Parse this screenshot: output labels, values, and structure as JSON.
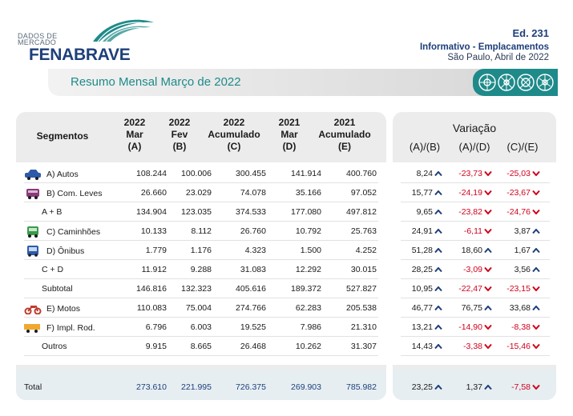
{
  "header": {
    "logo_sub_line1": "DADOS DE",
    "logo_sub_line2": "MERCADO",
    "logo_brand": "FENABRAVE",
    "edition": "Ed. 231",
    "informativo": "Informativo - Emplacamentos",
    "city_date": "São Paulo, Abril de 2022"
  },
  "banner": {
    "title": "Resumo Mensal Março de 2022"
  },
  "columns": {
    "segmentos": "Segmentos",
    "c1": [
      "2022",
      "Mar",
      "(A)"
    ],
    "c2": [
      "2022",
      "Fev",
      "(B)"
    ],
    "c3": [
      "2022",
      "Acumulado",
      "(C)"
    ],
    "c4": [
      "2021",
      "Mar",
      "(D)"
    ],
    "c5": [
      "2021",
      "Acumulado",
      "(E)"
    ]
  },
  "variacao": {
    "title": "Variação",
    "cols": [
      "(A)/(B)",
      "(A)/(D)",
      "(C)/(E)"
    ]
  },
  "colors": {
    "teal": "#1f8a8a",
    "navy": "#1e3f7a",
    "negative": "#d0021b",
    "positive_arrow": "#1e3f7a"
  },
  "rows": [
    {
      "label": "A) Autos",
      "icon": "car-icon",
      "a": "108.244",
      "b": "100.006",
      "c": "300.455",
      "d": "141.914",
      "e": "400.760",
      "v1": "8,24",
      "v1s": "up",
      "v2": "-23,73",
      "v2s": "down",
      "v3": "-25,03",
      "v3s": "down"
    },
    {
      "label": "B) Com. Leves",
      "icon": "van-icon",
      "a": "26.660",
      "b": "23.029",
      "c": "74.078",
      "d": "35.166",
      "e": "97.052",
      "v1": "15,77",
      "v1s": "up",
      "v2": "-24,19",
      "v2s": "down",
      "v3": "-23,67",
      "v3s": "down"
    },
    {
      "label": "A + B",
      "icon": "",
      "a": "134.904",
      "b": "123.035",
      "c": "374.533",
      "d": "177.080",
      "e": "497.812",
      "v1": "9,65",
      "v1s": "up",
      "v2": "-23,82",
      "v2s": "down",
      "v3": "-24,76",
      "v3s": "down"
    },
    {
      "label": "C) Caminhões",
      "icon": "truck-icon",
      "a": "10.133",
      "b": "8.112",
      "c": "26.760",
      "d": "10.792",
      "e": "25.763",
      "v1": "24,91",
      "v1s": "up",
      "v2": "-6,11",
      "v2s": "down",
      "v3": "3,87",
      "v3s": "up"
    },
    {
      "label": "D) Ônibus",
      "icon": "bus-icon",
      "a": "1.779",
      "b": "1.176",
      "c": "4.323",
      "d": "1.500",
      "e": "4.252",
      "v1": "51,28",
      "v1s": "up",
      "v2": "18,60",
      "v2s": "up",
      "v3": "1,67",
      "v3s": "up"
    },
    {
      "label": "C + D",
      "icon": "",
      "a": "11.912",
      "b": "9.288",
      "c": "31.083",
      "d": "12.292",
      "e": "30.015",
      "v1": "28,25",
      "v1s": "up",
      "v2": "-3,09",
      "v2s": "down",
      "v3": "3,56",
      "v3s": "up"
    },
    {
      "label": "Subtotal",
      "icon": "",
      "a": "146.816",
      "b": "132.323",
      "c": "405.616",
      "d": "189.372",
      "e": "527.827",
      "v1": "10,95",
      "v1s": "up",
      "v2": "-22,47",
      "v2s": "down",
      "v3": "-23,15",
      "v3s": "down"
    },
    {
      "label": "E) Motos",
      "icon": "motorcycle-icon",
      "a": "110.083",
      "b": "75.004",
      "c": "274.766",
      "d": "62.283",
      "e": "205.538",
      "v1": "46,77",
      "v1s": "up",
      "v2": "76,75",
      "v2s": "up",
      "v3": "33,68",
      "v3s": "up"
    },
    {
      "label": "F) Impl. Rod.",
      "icon": "trailer-icon",
      "a": "6.796",
      "b": "6.003",
      "c": "19.525",
      "d": "7.986",
      "e": "21.310",
      "v1": "13,21",
      "v1s": "up",
      "v2": "-14,90",
      "v2s": "down",
      "v3": "-8,38",
      "v3s": "down"
    },
    {
      "label": "Outros",
      "icon": "",
      "a": "9.915",
      "b": "8.665",
      "c": "26.468",
      "d": "10.262",
      "e": "31.307",
      "v1": "14,43",
      "v1s": "up",
      "v2": "-3,38",
      "v2s": "down",
      "v3": "-15,46",
      "v3s": "down"
    }
  ],
  "total": {
    "label": "Total",
    "a": "273.610",
    "b": "221.995",
    "c": "726.375",
    "d": "269.903",
    "e": "785.982",
    "v1": "23,25",
    "v1s": "up",
    "v2": "1,37",
    "v2s": "up",
    "v3": "-7,58",
    "v3s": "down"
  }
}
